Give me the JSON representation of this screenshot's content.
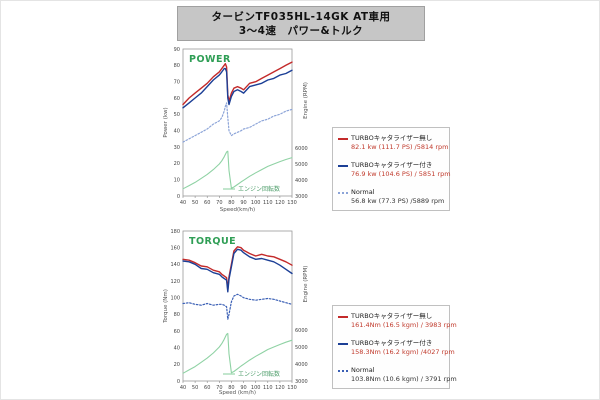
{
  "title": {
    "line1": "タービンTF035HL-14GK AT車用",
    "line2": "3〜4速　パワー&トルク"
  },
  "colors": {
    "turbo_none_red": "#c32a2a",
    "turbo_with_blue": "#1c3f96",
    "normal_power_blue": "#8ca4d8",
    "normal_torque_blue": "#3a5fb5",
    "engine_rpm_green": "#8fd2a4",
    "legend_value_red": "#c0392b",
    "chart_title_green": "#2f9e55",
    "titlebox_gray": "#c6c6c6"
  },
  "chart_data": [
    {
      "type": "line",
      "title": "POWER",
      "xlabel": "Speed(km/h)",
      "ylabel": "Power (kw)",
      "y2label": "Engine (RPM)",
      "xlim": [
        40,
        130
      ],
      "ylim": [
        0,
        90
      ],
      "xticks": [
        40,
        50,
        60,
        70,
        80,
        90,
        100,
        110,
        120,
        130
      ],
      "yticks": [
        0,
        10,
        20,
        30,
        40,
        50,
        60,
        70,
        80,
        90
      ],
      "y2ticks": [
        3000,
        4000,
        5000,
        6000
      ],
      "grid": false,
      "title_color": "#2f9e55",
      "x": [
        40,
        45,
        50,
        55,
        60,
        65,
        70,
        72,
        74,
        75,
        76,
        77,
        78,
        80,
        82,
        85,
        88,
        90,
        95,
        100,
        105,
        110,
        115,
        120,
        125,
        130
      ],
      "series": [
        {
          "name": "TURBOキャタライザー無し",
          "axis": "y1",
          "style": "solid",
          "color": "#c32a2a",
          "width": 1.4,
          "values": [
            56,
            60,
            63,
            66,
            69,
            73,
            76,
            78,
            80,
            81,
            79,
            62,
            58,
            63,
            66,
            67,
            66,
            65,
            69,
            70,
            72,
            74,
            76,
            78,
            80,
            82
          ]
        },
        {
          "name": "TURBOキャタライザー付き",
          "axis": "y1",
          "style": "solid",
          "color": "#1c3f96",
          "width": 1.4,
          "values": [
            54,
            57,
            60,
            63,
            67,
            71,
            74,
            76,
            78,
            78,
            76,
            60,
            56,
            61,
            64,
            65,
            64,
            63,
            67,
            68,
            69,
            71,
            72,
            74,
            75,
            77
          ]
        },
        {
          "name": "Normal",
          "axis": "y1",
          "style": "dotted",
          "color": "#8ca4d8",
          "width": 1.2,
          "values": [
            33,
            35,
            37,
            39,
            41,
            44,
            46,
            48,
            52,
            55,
            57,
            48,
            40,
            37,
            38,
            39,
            40,
            41,
            42,
            44,
            46,
            47,
            49,
            50,
            52,
            53
          ]
        },
        {
          "name": "エンジン回転数",
          "axis": "y2",
          "style": "solid",
          "color": "#8fd2a4",
          "width": 1.1,
          "values": [
            3450,
            3650,
            3850,
            4100,
            4350,
            4650,
            5000,
            5200,
            5450,
            5600,
            5750,
            5800,
            4600,
            3480,
            3560,
            3720,
            3880,
            3980,
            4230,
            4450,
            4650,
            4850,
            5000,
            5150,
            5280,
            5400
          ]
        }
      ],
      "inplot_legend": {
        "label": "エンジン回転数",
        "color": "#8fd2a4",
        "text_color": "#4f9e6b"
      },
      "legend": {
        "items": [
          {
            "label": "TURBOキャタライザー無し",
            "value": "82.1 kw (111.7 PS) /5814 rpm",
            "value_color": "#c0392b",
            "marker_color": "#c32a2a",
            "marker_style": "solid"
          },
          {
            "label": "TURBOキャタライザー付き",
            "value": "76.9 kw (104.6 PS) / 5851 rpm",
            "value_color": "#c0392b",
            "marker_color": "#1c3f96",
            "marker_style": "solid"
          },
          {
            "label": "Normal",
            "value": "56.8 kw (77.3 PS) /5889 rpm",
            "value_color": "#333333",
            "marker_color": "#8ca4d8",
            "marker_style": "dotted"
          }
        ]
      }
    },
    {
      "type": "line",
      "title": "TORQUE",
      "xlabel": "Speed (km/h)",
      "ylabel": "Torque (Nm)",
      "y2label": "Engine (RPM)",
      "xlim": [
        40,
        130
      ],
      "ylim": [
        0,
        180
      ],
      "xticks": [
        40,
        50,
        60,
        70,
        80,
        90,
        100,
        110,
        120,
        130
      ],
      "yticks": [
        0,
        20,
        40,
        60,
        80,
        100,
        120,
        140,
        160,
        180
      ],
      "y2ticks": [
        3000,
        4000,
        5000,
        6000
      ],
      "grid": false,
      "title_color": "#2f9e55",
      "x": [
        40,
        45,
        50,
        55,
        60,
        65,
        70,
        72,
        74,
        75,
        76,
        77,
        78,
        80,
        82,
        85,
        88,
        90,
        95,
        100,
        105,
        110,
        115,
        120,
        125,
        130
      ],
      "series": [
        {
          "name": "TURBOキャタライザー無し",
          "axis": "y1",
          "style": "solid",
          "color": "#c32a2a",
          "width": 1.4,
          "values": [
            146,
            145,
            142,
            138,
            137,
            133,
            131,
            128,
            126,
            125,
            124,
            110,
            125,
            140,
            156,
            161,
            160,
            157,
            153,
            150,
            152,
            150,
            149,
            146,
            143,
            139
          ]
        },
        {
          "name": "TURBOキャタライザー付き",
          "axis": "y1",
          "style": "solid",
          "color": "#1c3f96",
          "width": 1.4,
          "values": [
            144,
            143,
            140,
            135,
            134,
            130,
            128,
            125,
            123,
            122,
            121,
            107,
            122,
            137,
            153,
            158,
            157,
            154,
            149,
            146,
            147,
            145,
            143,
            139,
            134,
            129
          ]
        },
        {
          "name": "Normal",
          "axis": "y1",
          "style": "dotted",
          "color": "#3a5fb5",
          "width": 1.2,
          "values": [
            93,
            94,
            92,
            91,
            93,
            91,
            92,
            92,
            91,
            90,
            89,
            74,
            80,
            95,
            102,
            104,
            102,
            100,
            98,
            97,
            98,
            99,
            98,
            96,
            94,
            92
          ]
        },
        {
          "name": "エンジン回転数",
          "axis": "y2",
          "style": "solid",
          "color": "#8fd2a4",
          "width": 1.1,
          "values": [
            3450,
            3650,
            3850,
            4100,
            4350,
            4650,
            5000,
            5200,
            5450,
            5600,
            5750,
            5800,
            4600,
            3480,
            3560,
            3720,
            3880,
            3980,
            4230,
            4450,
            4650,
            4850,
            5000,
            5150,
            5280,
            5400
          ]
        }
      ],
      "inplot_legend": {
        "label": "エンジン回転数",
        "color": "#8fd2a4",
        "text_color": "#4f9e6b"
      },
      "legend": {
        "items": [
          {
            "label": "TURBOキャタライザー無し",
            "value": "161.4Nm (16.5 kgm) / 3983 rpm",
            "value_color": "#c0392b",
            "marker_color": "#c32a2a",
            "marker_style": "solid"
          },
          {
            "label": "TURBOキャタライザー付き",
            "value": "158.3Nm (16.2 kgm) /4027 rpm",
            "value_color": "#c0392b",
            "marker_color": "#1c3f96",
            "marker_style": "solid"
          },
          {
            "label": "Normal",
            "value": "103.8Nm (10.6 kgm) / 3791 rpm",
            "value_color": "#333333",
            "marker_color": "#3a5fb5",
            "marker_style": "dotted"
          }
        ]
      }
    }
  ]
}
